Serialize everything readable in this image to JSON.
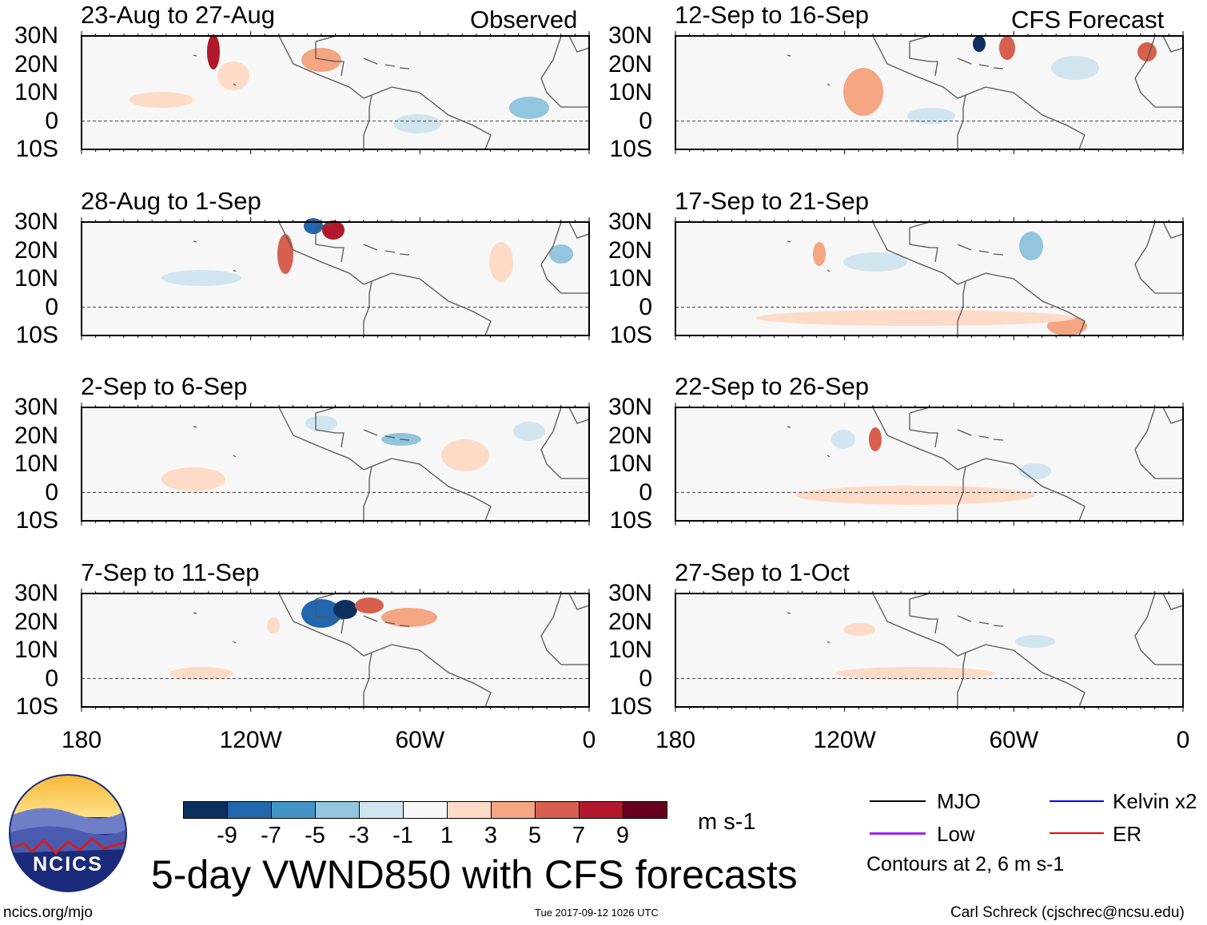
{
  "title": "5-day VWND850 with CFS forecasts",
  "headers": {
    "observed": "Observed",
    "forecast": "CFS Forecast"
  },
  "panels": [
    {
      "title": "23-Aug to 27-Aug",
      "group": "observed"
    },
    {
      "title": "28-Aug to 1-Sep",
      "group": "observed"
    },
    {
      "title": "2-Sep to 6-Sep",
      "group": "observed"
    },
    {
      "title": "7-Sep to 11-Sep",
      "group": "observed"
    },
    {
      "title": "12-Sep to 16-Sep",
      "group": "forecast"
    },
    {
      "title": "17-Sep to 21-Sep",
      "group": "forecast"
    },
    {
      "title": "22-Sep to 26-Sep",
      "group": "forecast"
    },
    {
      "title": "27-Sep to 1-Oct",
      "group": "forecast"
    }
  ],
  "axes": {
    "lat_labels": [
      "30N",
      "20N",
      "10N",
      "0",
      "10S"
    ],
    "lon_labels": [
      "180",
      "120W",
      "60W",
      "0"
    ]
  },
  "colorbar": {
    "labels": [
      "-9",
      "-7",
      "-5",
      "-3",
      "-1",
      "1",
      "3",
      "5",
      "7",
      "9"
    ],
    "colors": [
      "#0b2f5f",
      "#2266ae",
      "#4394c6",
      "#92c5de",
      "#d1e5f0",
      "#f7f7f7",
      "#fddbc7",
      "#f4a582",
      "#d6604d",
      "#b2182b",
      "#67001f"
    ],
    "units": "m s-1"
  },
  "legend": {
    "items": [
      {
        "label": "MJO",
        "color": "#000000"
      },
      {
        "label": "Kelvin x2",
        "color": "#0000ff"
      },
      {
        "label": "Low",
        "color": "#a020f0"
      },
      {
        "label": "ER",
        "color": "#ff0000"
      }
    ],
    "note": "Contours at 2, 6 m s-1"
  },
  "logo": {
    "text": "NCICS"
  },
  "footer": {
    "url": "ncics.org/mjo",
    "timestamp": "Tue 2017-09-12 1026 UTC",
    "credit": "Carl Schreck (cjschrec@ncsu.edu)"
  }
}
